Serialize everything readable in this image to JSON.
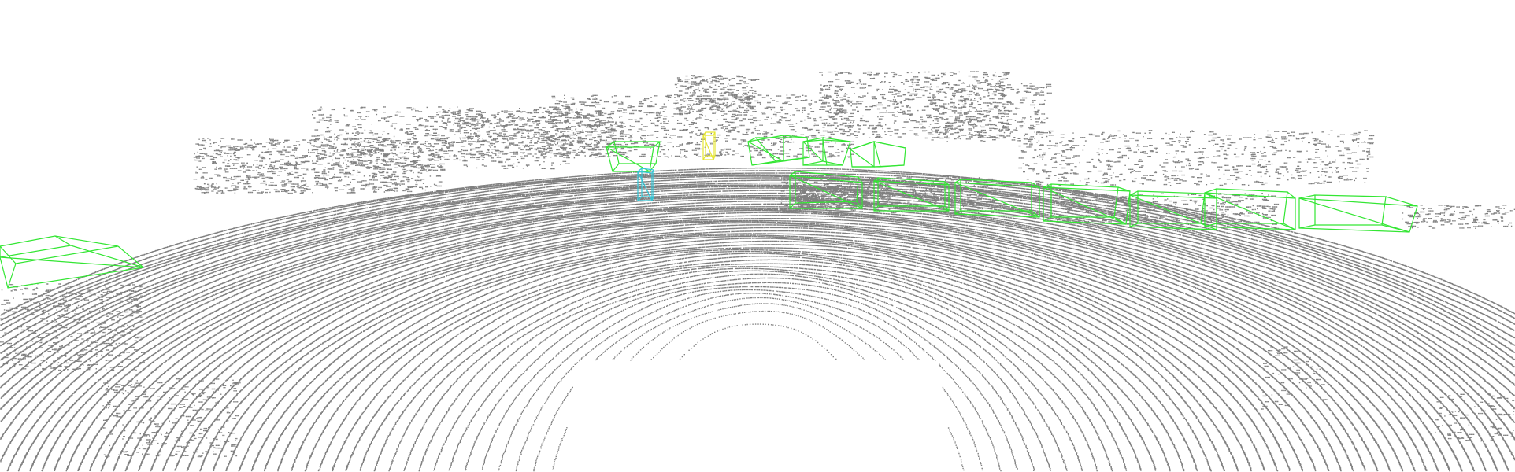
{
  "scene": {
    "background_color": "#ffffff",
    "point_color": "#808080",
    "box_colors": {
      "car": "#33e633",
      "pedestrian": "#33c6d6",
      "cyclist": "#e6e633"
    }
  },
  "objects": [
    {
      "class": "car"
    },
    {
      "class": "car"
    },
    {
      "class": "car"
    },
    {
      "class": "car"
    },
    {
      "class": "car"
    },
    {
      "class": "car"
    },
    {
      "class": "car"
    },
    {
      "class": "car"
    },
    {
      "class": "car"
    },
    {
      "class": "car"
    },
    {
      "class": "car"
    },
    {
      "class": "car"
    },
    {
      "class": "pedestrian"
    },
    {
      "class": "cyclist"
    }
  ]
}
